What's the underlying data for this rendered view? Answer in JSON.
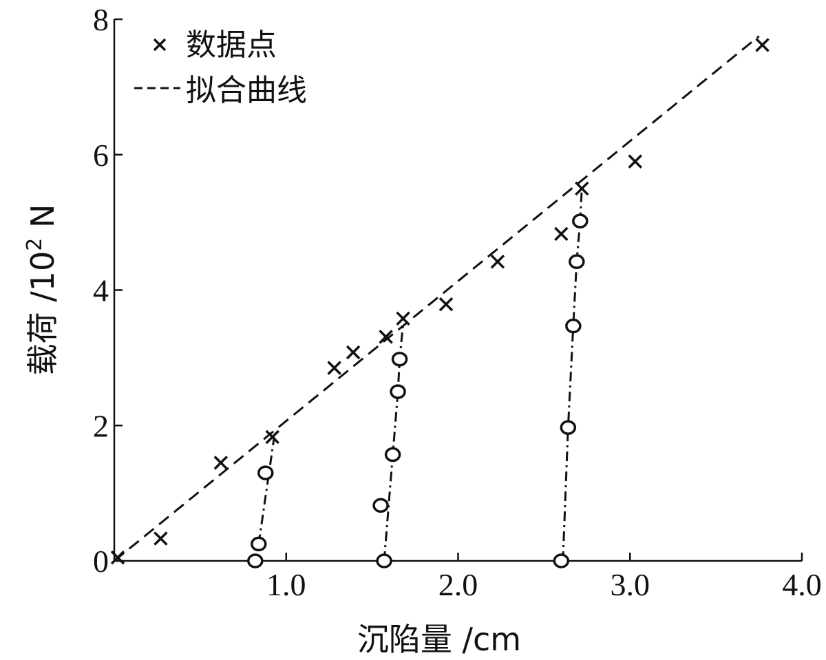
{
  "chart_data": {
    "type": "scatter",
    "xlabel": "沉陷量 /cm",
    "ylabel_main": "载荷 /10",
    "ylabel_sup": "2",
    "ylabel_unit": " N",
    "xlim": [
      0,
      4.0
    ],
    "ylim": [
      0,
      8
    ],
    "x_ticks": [
      {
        "value": 1.0,
        "label": "1.0"
      },
      {
        "value": 2.0,
        "label": "2.0"
      },
      {
        "value": 3.0,
        "label": "3.0"
      },
      {
        "value": 4.0,
        "label": "4.0"
      }
    ],
    "y_ticks": [
      {
        "value": 0,
        "label": "0"
      },
      {
        "value": 2,
        "label": "2"
      },
      {
        "value": 4,
        "label": "4"
      },
      {
        "value": 6,
        "label": "6"
      },
      {
        "value": 8,
        "label": "8"
      }
    ],
    "grid": false,
    "legend": {
      "position": "top-left",
      "entries": [
        {
          "marker": "x",
          "label": "数据点"
        },
        {
          "marker": "dashed-line",
          "label": "拟合曲线"
        }
      ]
    },
    "series": [
      {
        "marker": "x",
        "points": [
          {
            "x": 0.02,
            "y": 0.05
          },
          {
            "x": 0.27,
            "y": 0.33
          },
          {
            "x": 0.62,
            "y": 1.45
          },
          {
            "x": 0.92,
            "y": 1.83
          },
          {
            "x": 1.28,
            "y": 2.85
          },
          {
            "x": 1.39,
            "y": 3.08
          },
          {
            "x": 1.58,
            "y": 3.31
          },
          {
            "x": 1.68,
            "y": 3.58
          },
          {
            "x": 1.93,
            "y": 3.79
          },
          {
            "x": 2.23,
            "y": 4.42
          },
          {
            "x": 2.6,
            "y": 4.83
          },
          {
            "x": 2.72,
            "y": 5.5
          },
          {
            "x": 3.03,
            "y": 5.9
          },
          {
            "x": 3.77,
            "y": 7.62
          }
        ]
      },
      {
        "marker": "circle",
        "points": [
          {
            "x": 0.82,
            "y": 0.0
          },
          {
            "x": 0.84,
            "y": 0.25
          },
          {
            "x": 0.88,
            "y": 1.3
          },
          {
            "x": 1.57,
            "y": 0.0
          },
          {
            "x": 1.55,
            "y": 0.82
          },
          {
            "x": 1.62,
            "y": 1.57
          },
          {
            "x": 1.65,
            "y": 2.5
          },
          {
            "x": 1.66,
            "y": 2.98
          },
          {
            "x": 2.6,
            "y": 0.0
          },
          {
            "x": 2.64,
            "y": 1.97
          },
          {
            "x": 2.67,
            "y": 3.47
          },
          {
            "x": 2.69,
            "y": 4.42
          },
          {
            "x": 2.71,
            "y": 5.02
          }
        ]
      }
    ],
    "lines": [
      {
        "style": "dashed",
        "points": [
          {
            "x": 0.0,
            "y": 0.0
          },
          {
            "x": 3.75,
            "y": 7.75
          }
        ]
      },
      {
        "style": "dashdot",
        "points": [
          {
            "x": 0.84,
            "y": 0.25
          },
          {
            "x": 0.9,
            "y": 1.3
          },
          {
            "x": 0.93,
            "y": 1.83
          }
        ]
      },
      {
        "style": "dashdot",
        "points": [
          {
            "x": 1.57,
            "y": 0.0
          },
          {
            "x": 1.62,
            "y": 1.57
          },
          {
            "x": 1.65,
            "y": 2.5
          },
          {
            "x": 1.66,
            "y": 2.98
          },
          {
            "x": 1.68,
            "y": 3.5
          }
        ]
      },
      {
        "style": "dashdot",
        "points": [
          {
            "x": 2.61,
            "y": 0.0
          },
          {
            "x": 2.64,
            "y": 1.97
          },
          {
            "x": 2.67,
            "y": 3.47
          },
          {
            "x": 2.69,
            "y": 4.42
          },
          {
            "x": 2.71,
            "y": 5.02
          },
          {
            "x": 2.72,
            "y": 5.5
          }
        ]
      }
    ]
  }
}
